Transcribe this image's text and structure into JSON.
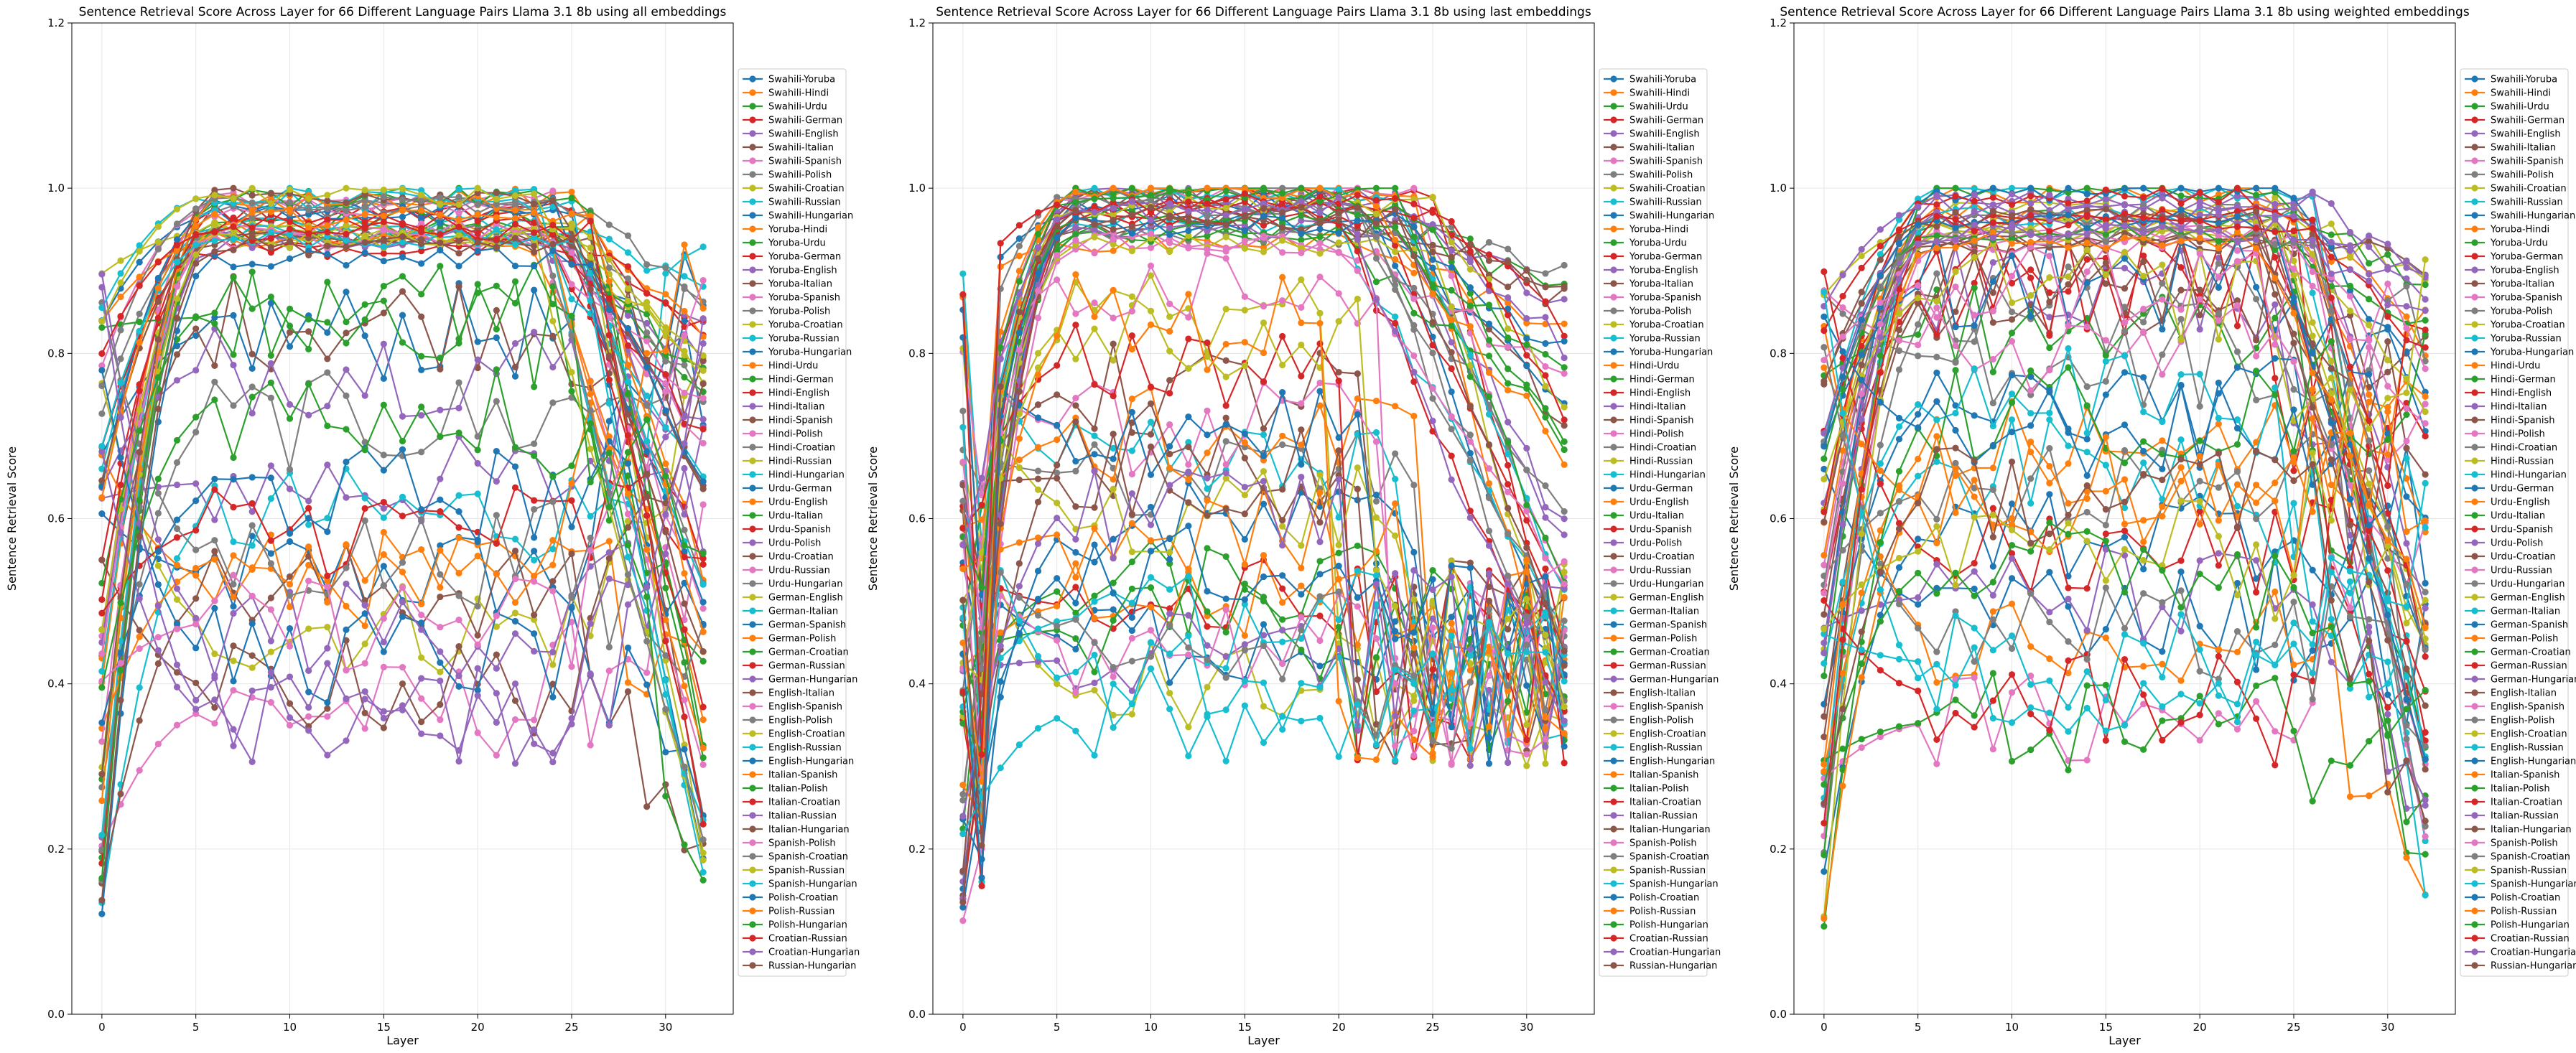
{
  "chart_data": [
    {
      "type": "line",
      "title": "Sentence Retrieval Score Across Layer for 66 Different Language Pairs Llama 3.1 8b using all embeddings",
      "xlabel": "Layer",
      "ylabel": "Sentence Retrieval Score",
      "xlim": [
        -1.6,
        33.6
      ],
      "ylim": [
        0.0,
        1.2
      ],
      "xticks": [
        0,
        5,
        10,
        15,
        20,
        25,
        30
      ],
      "yticks": [
        0.0,
        0.2,
        0.4,
        0.6,
        0.8,
        1.0,
        1.2
      ],
      "grid": true,
      "legend_position": "right"
    },
    {
      "type": "line",
      "title": "Sentence Retrieval Score Across Layer for 66 Different Language Pairs Llama 3.1 8b using last embeddings",
      "xlabel": "Layer",
      "ylabel": "Sentence Retrieval Score",
      "xlim": [
        -1.6,
        33.6
      ],
      "ylim": [
        0.0,
        1.2
      ],
      "xticks": [
        0,
        5,
        10,
        15,
        20,
        25,
        30
      ],
      "yticks": [
        0.0,
        0.2,
        0.4,
        0.6,
        0.8,
        1.0,
        1.2
      ],
      "grid": true,
      "legend_position": "right"
    },
    {
      "type": "line",
      "title": "Sentence Retrieval Score Across Layer for 66 Different Language Pairs Llama 3.1 8b using weighted embeddings",
      "xlabel": "Layer",
      "ylabel": "Sentence Retrieval Score",
      "xlim": [
        -1.6,
        33.6
      ],
      "ylim": [
        0.0,
        1.2
      ],
      "xticks": [
        0,
        5,
        10,
        15,
        20,
        25,
        30
      ],
      "yticks": [
        0.0,
        0.2,
        0.4,
        0.6,
        0.8,
        1.0,
        1.2
      ],
      "grid": true,
      "legend_position": "right"
    }
  ],
  "legend_labels": [
    "Swahili-Yoruba",
    "Swahili-Hindi",
    "Swahili-Urdu",
    "Swahili-German",
    "Swahili-English",
    "Swahili-Italian",
    "Swahili-Spanish",
    "Swahili-Polish",
    "Swahili-Croatian",
    "Swahili-Russian",
    "Swahili-Hungarian",
    "Yoruba-Hindi",
    "Yoruba-Urdu",
    "Yoruba-German",
    "Yoruba-English",
    "Yoruba-Italian",
    "Yoruba-Spanish",
    "Yoruba-Polish",
    "Yoruba-Croatian",
    "Yoruba-Russian",
    "Yoruba-Hungarian",
    "Hindi-Urdu",
    "Hindi-German",
    "Hindi-English",
    "Hindi-Italian",
    "Hindi-Spanish",
    "Hindi-Polish",
    "Hindi-Croatian",
    "Hindi-Russian",
    "Hindi-Hungarian",
    "Urdu-German",
    "Urdu-English",
    "Urdu-Italian",
    "Urdu-Spanish",
    "Urdu-Polish",
    "Urdu-Croatian",
    "Urdu-Russian",
    "Urdu-Hungarian",
    "German-English",
    "German-Italian",
    "German-Spanish",
    "German-Polish",
    "German-Croatian",
    "German-Russian",
    "German-Hungarian",
    "English-Italian",
    "English-Spanish",
    "English-Polish",
    "English-Croatian",
    "English-Russian",
    "English-Hungarian",
    "Italian-Spanish",
    "Italian-Polish",
    "Italian-Croatian",
    "Italian-Russian",
    "Italian-Hungarian",
    "Spanish-Polish",
    "Spanish-Croatian",
    "Spanish-Russian",
    "Spanish-Hungarian",
    "Polish-Croatian",
    "Polish-Russian",
    "Polish-Hungarian",
    "Croatian-Russian",
    "Croatian-Hungarian",
    "Russian-Hungarian"
  ],
  "palette": [
    "#1f77b4",
    "#ff7f0e",
    "#2ca02c",
    "#d62728",
    "#9467bd",
    "#8c564b",
    "#e377c2",
    "#7f7f7f",
    "#bcbd22",
    "#17becf"
  ]
}
